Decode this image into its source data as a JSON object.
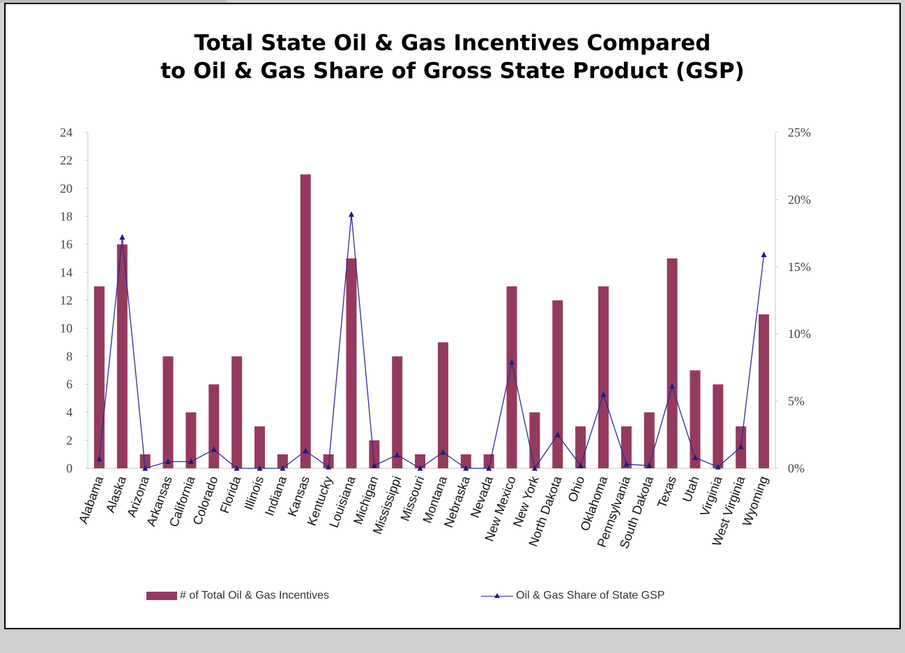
{
  "colors": {
    "bar": "#953a5f",
    "line": "#2b2d8e",
    "marker": "#1b1d7c",
    "axis": "#444444"
  },
  "chart_data": {
    "type": "bar",
    "title": "Total State Oil & Gas Incentives Compared to Oil & Gas Share of Gross State Product (GSP)",
    "title_lines": [
      "Total State Oil & Gas Incentives Compared",
      "to Oil & Gas Share of Gross State Product (GSP)"
    ],
    "categories": [
      "Alabama",
      "Alaska",
      "Arizona",
      "Arkansas",
      "California",
      "Colorado",
      "Florida",
      "Illinois",
      "Indiana",
      "Kansas",
      "Kentucky",
      "Louisiana",
      "Michigan",
      "Mississippi",
      "Missouri",
      "Montana",
      "Nebraska",
      "Nevada",
      "New Mexico",
      "New York",
      "North Dakota",
      "Ohio",
      "Oklahoma",
      "Pennsylvania",
      "South Dakota",
      "Texas",
      "Utah",
      "Virginia",
      "West Virginia",
      "Wyoming"
    ],
    "series": [
      {
        "name": "# of Total Oil & Gas Incentives",
        "type": "bar",
        "axis": "left",
        "values": [
          13,
          16,
          1,
          8,
          4,
          6,
          8,
          3,
          1,
          21,
          1,
          15,
          2,
          8,
          1,
          9,
          1,
          1,
          13,
          4,
          12,
          3,
          13,
          3,
          4,
          15,
          7,
          6,
          3,
          11
        ]
      },
      {
        "name": "Oil & Gas Share of State GSP",
        "type": "line",
        "axis": "right",
        "unit": "percent",
        "values": [
          0.7,
          17.2,
          0,
          0.5,
          0.5,
          1.4,
          0,
          0,
          0,
          1.3,
          0.1,
          18.9,
          0.2,
          1.0,
          0,
          1.2,
          0,
          0,
          7.9,
          0,
          2.5,
          0.2,
          5.5,
          0.3,
          0.2,
          6.1,
          0.8,
          0.1,
          1.6,
          15.9
        ]
      }
    ],
    "y_left": {
      "min": 0,
      "max": 24,
      "ticks": [
        "0",
        "2",
        "4",
        "6",
        "8",
        "10",
        "12",
        "14",
        "16",
        "18",
        "20",
        "22",
        "24"
      ]
    },
    "y_right": {
      "min": 0,
      "max": 25,
      "ticks": [
        "0%",
        "5%",
        "10%",
        "15%",
        "20%",
        "25%"
      ]
    },
    "grid": false,
    "legend_position": "bottom"
  }
}
